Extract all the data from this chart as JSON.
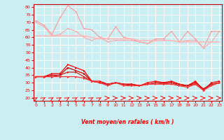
{
  "xlabel": "Vent moyen/en rafales ( km/h )",
  "background_color": "#cbeef3",
  "grid_color": "#ffffff",
  "x": [
    0,
    1,
    2,
    3,
    4,
    5,
    6,
    7,
    8,
    9,
    10,
    11,
    12,
    13,
    14,
    15,
    16,
    17,
    18,
    19,
    20,
    21,
    22,
    23
  ],
  "ylim": [
    18,
    82
  ],
  "xlim": [
    -0.3,
    23.3
  ],
  "yticks": [
    20,
    25,
    30,
    35,
    40,
    45,
    50,
    55,
    60,
    65,
    70,
    75,
    80
  ],
  "xticks": [
    0,
    1,
    2,
    3,
    4,
    5,
    6,
    7,
    8,
    9,
    10,
    11,
    12,
    13,
    14,
    15,
    16,
    17,
    18,
    19,
    20,
    21,
    22,
    23
  ],
  "series": {
    "rafales_top": [
      71,
      68,
      62,
      73,
      81,
      77,
      66,
      65,
      60,
      59,
      67,
      60,
      59,
      57,
      56,
      59,
      59,
      64,
      57,
      64,
      59,
      53,
      64,
      64
    ],
    "rafales_line1": [
      70,
      67,
      61,
      62,
      66,
      64,
      60,
      58,
      60,
      57,
      58,
      58,
      58,
      57,
      56,
      58,
      58,
      58,
      57,
      58,
      58,
      53,
      57,
      64
    ],
    "rafales_line2": [
      61,
      61,
      61,
      61,
      61,
      61,
      61,
      60,
      59,
      59,
      59,
      59,
      59,
      58,
      58,
      58,
      58,
      58,
      57,
      57,
      57,
      57,
      57,
      57
    ],
    "moy_top": [
      34,
      34,
      36,
      36,
      42,
      40,
      38,
      31,
      31,
      29,
      30,
      29,
      29,
      28,
      30,
      31,
      30,
      31,
      29,
      28,
      31,
      25,
      30,
      31
    ],
    "moy_mid1": [
      34,
      34,
      35,
      35,
      40,
      38,
      36,
      31,
      30,
      29,
      30,
      29,
      29,
      28,
      29,
      30,
      30,
      30,
      29,
      28,
      30,
      26,
      29,
      30
    ],
    "moy_mid2": [
      34,
      34,
      34,
      35,
      37,
      37,
      34,
      31,
      30,
      29,
      30,
      29,
      28,
      28,
      29,
      30,
      29,
      30,
      28,
      28,
      29,
      25,
      29,
      30
    ],
    "moy_low": [
      34,
      34,
      34,
      34,
      34,
      34,
      33,
      31,
      30,
      28,
      30,
      28,
      28,
      28,
      29,
      29,
      29,
      29,
      28,
      27,
      29,
      25,
      28,
      30
    ]
  },
  "colors": {
    "rafales_top": "#ff9999",
    "rafales_line1": "#ffaaaa",
    "rafales_line2": "#ffbbbb",
    "moy_top": "#ff0000",
    "moy_mid1": "#dd0000",
    "moy_mid2": "#cc2222",
    "moy_low": "#ff3333"
  },
  "arrow_up_indices": [
    0,
    1,
    2,
    3,
    4,
    5,
    6,
    7,
    8
  ],
  "arrow_right_indices": [
    9,
    10,
    11,
    12,
    13,
    14,
    15,
    16,
    17,
    18,
    19,
    20,
    21,
    22,
    23
  ]
}
